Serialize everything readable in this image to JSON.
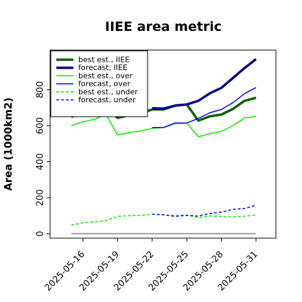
{
  "chart_data": {
    "type": "line",
    "title": "IIEE area metric",
    "xlabel": "",
    "ylabel": "Area (1000km2)",
    "ylim": [
      -25,
      1020
    ],
    "yticks": [
      0,
      200,
      400,
      600,
      800
    ],
    "x": [
      "2025-05-15",
      "2025-05-16",
      "2025-05-17",
      "2025-05-18",
      "2025-05-19",
      "2025-05-20",
      "2025-05-21",
      "2025-05-22",
      "2025-05-23",
      "2025-05-24",
      "2025-05-25",
      "2025-05-26",
      "2025-05-27",
      "2025-05-28",
      "2025-05-29",
      "2025-05-30",
      "2025-05-31"
    ],
    "xticks": [
      "2025-05-16",
      "2025-05-19",
      "2025-05-22",
      "2025-05-25",
      "2025-05-28",
      "2025-05-31"
    ],
    "highlight_tick": "2025-05-22",
    "highlight_color": "#228B22",
    "grid": false,
    "legend_position": "upper-left",
    "series": [
      {
        "name": "best est., IIEE",
        "color": "#006400",
        "style": "solid",
        "width": "thick",
        "values": [
          648,
          683,
          683,
          698,
          643,
          658,
          670,
          690,
          690,
          712,
          718,
          628,
          652,
          662,
          693,
          738,
          755
        ]
      },
      {
        "name": "forecast, IIEE",
        "color": "#00008B",
        "style": "solid",
        "width": "thick",
        "values": [
          null,
          null,
          null,
          null,
          null,
          null,
          null,
          697,
          695,
          712,
          718,
          738,
          780,
          810,
          865,
          920,
          970
        ]
      },
      {
        "name": "best est., over",
        "color": "#00EE00",
        "style": "solid",
        "width": "thin",
        "values": [
          600,
          622,
          635,
          662,
          548,
          562,
          570,
          585,
          590,
          612,
          615,
          538,
          556,
          568,
          600,
          643,
          652
        ]
      },
      {
        "name": "forecast, over",
        "color": "#0000FF",
        "style": "solid",
        "width": "thin",
        "values": [
          null,
          null,
          null,
          null,
          null,
          null,
          null,
          590,
          590,
          615,
          615,
          640,
          672,
          690,
          728,
          778,
          812
        ]
      },
      {
        "name": "best est., under",
        "color": "#00EE00",
        "style": "dashed",
        "width": "thin",
        "values": [
          48,
          60,
          66,
          72,
          96,
          100,
          102,
          108,
          105,
          100,
          103,
          90,
          98,
          95,
          93,
          97,
          104
        ]
      },
      {
        "name": "forecast, under",
        "color": "#0000FF",
        "style": "dashed",
        "width": "thin",
        "values": [
          null,
          null,
          null,
          null,
          null,
          null,
          null,
          108,
          105,
          96,
          102,
          98,
          112,
          120,
          135,
          140,
          158
        ]
      }
    ],
    "reference_line": {
      "y": 0,
      "color": "#808080"
    }
  }
}
